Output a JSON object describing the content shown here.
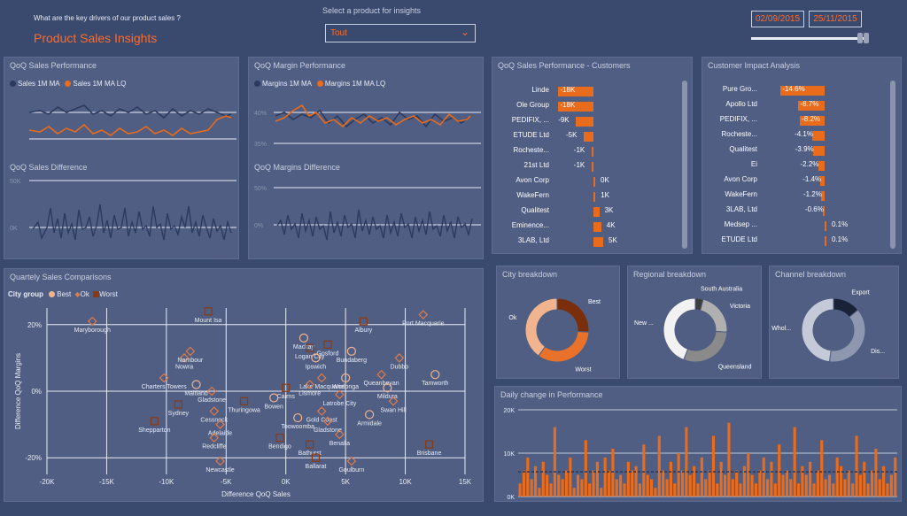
{
  "header": {
    "question": "What are the key drivers of our product sales ?",
    "title": "Product Sales Insights",
    "select_label": "Select a product for insights",
    "select_value": "Tout",
    "date_start": "02/09/2015",
    "date_end": "25/11/2015"
  },
  "panels": {
    "sales_perf": {
      "title": "QoQ Sales Performance",
      "legend_a": "Sales 1M MA",
      "legend_b": "Sales 1M MA LQ"
    },
    "sales_diff": {
      "title": "QoQ Sales Difference",
      "tick_top": "50K",
      "tick_mid": "0K"
    },
    "margin_perf": {
      "title": "QoQ Margin Performance",
      "legend_a": "Margins 1M MA",
      "legend_b": "Margins 1M MA LQ",
      "tick_top": "40%",
      "tick_bot": "35%"
    },
    "margin_diff": {
      "title": "QoQ Margins Difference",
      "tick_top": "50%",
      "tick_mid": "0%"
    },
    "customers": {
      "title": "QoQ Sales Performance - Customers"
    },
    "impact": {
      "title": "Customer Impact Analysis"
    },
    "scatter": {
      "title": "Quartely Sales Comparisons",
      "legend_title": "City group",
      "legend_best": "Best",
      "legend_ok": "Ok",
      "legend_worst": "Worst",
      "xlabel": "Difference QoQ Sales",
      "ylabel": "Difference QoQ Margins"
    },
    "city": {
      "title": "City breakdown"
    },
    "regional": {
      "title": "Regional breakdown"
    },
    "channel": {
      "title": "Channel breakdown"
    },
    "daily": {
      "title": "Daily change in Performance"
    }
  },
  "customers": [
    {
      "name": "Linde",
      "label": "-18K",
      "value": -18
    },
    {
      "name": "Ole Group",
      "label": "-18K",
      "value": -18
    },
    {
      "name": "PEDIFIX, ...",
      "label": "-9K",
      "value": -9
    },
    {
      "name": "ETUDE Ltd",
      "label": "-5K",
      "value": -5
    },
    {
      "name": "Rocheste...",
      "label": "-1K",
      "value": -1
    },
    {
      "name": "21st Ltd",
      "label": "-1K",
      "value": -1
    },
    {
      "name": "Avon Corp",
      "label": "0K",
      "value": 0
    },
    {
      "name": "WakeFern",
      "label": "1K",
      "value": 1
    },
    {
      "name": "Qualitest",
      "label": "3K",
      "value": 3
    },
    {
      "name": "Eminence...",
      "label": "4K",
      "value": 4
    },
    {
      "name": "3LAB, Ltd",
      "label": "5K",
      "value": 5
    }
  ],
  "impact": [
    {
      "name": "Pure Gro...",
      "label": "-14.6%",
      "value": -14.6
    },
    {
      "name": "Apollo Ltd",
      "label": "-8.7%",
      "value": -8.7
    },
    {
      "name": "PEDIFIX, ...",
      "label": "-8.2%",
      "value": -8.2
    },
    {
      "name": "Rocheste...",
      "label": "-4.1%",
      "value": -4.1
    },
    {
      "name": "Qualitest",
      "label": "-3.9%",
      "value": -3.9
    },
    {
      "name": "Ei",
      "label": "-2.2%",
      "value": -2.2
    },
    {
      "name": "Avon Corp",
      "label": "-1.4%",
      "value": -1.4
    },
    {
      "name": "WakeFern",
      "label": "-1.2%",
      "value": -1.2
    },
    {
      "name": "3LAB, Ltd",
      "label": "-0.6%",
      "value": -0.6
    },
    {
      "name": "Medsep ...",
      "label": "0.1%",
      "value": 0.1
    },
    {
      "name": "ETUDE Ltd",
      "label": "0.1%",
      "value": 0.1
    }
  ],
  "colors": {
    "accent": "#e96b1c",
    "series_dark": "#2c3a5e",
    "best": "#f2b48f",
    "ok": "#e07a4a",
    "worst": "#8a3a12"
  },
  "chart_data": [
    {
      "type": "scatter",
      "title": "Quartely Sales Comparisons",
      "xlabel": "Difference QoQ Sales",
      "ylabel": "Difference QoQ Margins",
      "xlim": [
        -20000,
        15000
      ],
      "ylim": [
        -25,
        25
      ],
      "x_ticks": [
        "-20K",
        "-15K",
        "-10K",
        "-5K",
        "0K",
        "5K",
        "10K",
        "15K"
      ],
      "y_ticks": [
        "20%",
        "0%",
        "-20%"
      ],
      "points": [
        {
          "name": "Port Macquarie",
          "x": 11500,
          "y": 23,
          "group": "Ok"
        },
        {
          "name": "Maryborough",
          "x": -16200,
          "y": 21,
          "group": "Ok"
        },
        {
          "name": "Mount Isa",
          "x": -6500,
          "y": 24,
          "group": "Worst"
        },
        {
          "name": "Nowra",
          "x": -8500,
          "y": 10,
          "group": "Ok"
        },
        {
          "name": "Nambour",
          "x": -8000,
          "y": 12,
          "group": "Ok"
        },
        {
          "name": "Mackay",
          "x": 1500,
          "y": 16,
          "group": "Best"
        },
        {
          "name": "Gosford",
          "x": 3500,
          "y": 14,
          "group": "Worst"
        },
        {
          "name": "Albury",
          "x": 6500,
          "y": 21,
          "group": "Worst"
        },
        {
          "name": "Logan City",
          "x": 2000,
          "y": 13,
          "group": "Worst"
        },
        {
          "name": "Ipswich",
          "x": 2500,
          "y": 10,
          "group": "Best"
        },
        {
          "name": "Bundaberg",
          "x": 5500,
          "y": 12,
          "group": "Best"
        },
        {
          "name": "Dubbo",
          "x": 9500,
          "y": 10,
          "group": "Ok"
        },
        {
          "name": "Queanbeyan",
          "x": 8000,
          "y": 5,
          "group": "Ok"
        },
        {
          "name": "Tamworth",
          "x": 12500,
          "y": 5,
          "group": "Best"
        },
        {
          "name": "Lake Macquarie",
          "x": 3000,
          "y": 4,
          "group": "Ok"
        },
        {
          "name": "Wodonga",
          "x": 5000,
          "y": 4,
          "group": "Best"
        },
        {
          "name": "Lismore",
          "x": 2000,
          "y": 2,
          "group": "Ok"
        },
        {
          "name": "Cairns",
          "x": 0,
          "y": 1,
          "group": "Worst"
        },
        {
          "name": "Latrobe City",
          "x": 4500,
          "y": -1,
          "group": "Ok"
        },
        {
          "name": "Mildura",
          "x": 8500,
          "y": 1,
          "group": "Best"
        },
        {
          "name": "Swan Hill",
          "x": 9000,
          "y": -3,
          "group": "Ok"
        },
        {
          "name": "Charters Towers",
          "x": -10200,
          "y": 4,
          "group": "Ok"
        },
        {
          "name": "Maitland",
          "x": -7500,
          "y": 2,
          "group": "Best"
        },
        {
          "name": "Gladstone",
          "x": -6200,
          "y": 0,
          "group": "Ok"
        },
        {
          "name": "Sydney",
          "x": -9000,
          "y": -4,
          "group": "Worst"
        },
        {
          "name": "Cessnock",
          "x": -6000,
          "y": -6,
          "group": "Ok"
        },
        {
          "name": "Thuringowa",
          "x": -3500,
          "y": -3,
          "group": "Worst"
        },
        {
          "name": "Bowen",
          "x": -1000,
          "y": -2,
          "group": "Best"
        },
        {
          "name": "Gold Coast",
          "x": 3000,
          "y": -6,
          "group": "Ok"
        },
        {
          "name": "Armidale",
          "x": 7000,
          "y": -7,
          "group": "Best"
        },
        {
          "name": "Gladstone",
          "x": 3500,
          "y": -9,
          "group": "Ok"
        },
        {
          "name": "Adelaide",
          "x": -5500,
          "y": -10,
          "group": "Ok"
        },
        {
          "name": "Toowoomba",
          "x": 1000,
          "y": -8,
          "group": "Best"
        },
        {
          "name": "Shepparton",
          "x": -11000,
          "y": -9,
          "group": "Worst"
        },
        {
          "name": "Redcliffe",
          "x": -6000,
          "y": -14,
          "group": "Ok"
        },
        {
          "name": "Benalla",
          "x": 4500,
          "y": -13,
          "group": "Ok"
        },
        {
          "name": "Bendigo",
          "x": -500,
          "y": -14,
          "group": "Worst"
        },
        {
          "name": "Bathurst",
          "x": 2000,
          "y": -16,
          "group": "Worst"
        },
        {
          "name": "Ballarat",
          "x": 2500,
          "y": -20,
          "group": "Worst"
        },
        {
          "name": "Newcastle",
          "x": -5500,
          "y": -21,
          "group": "Ok"
        },
        {
          "name": "Goulburn",
          "x": 5500,
          "y": -21,
          "group": "Ok"
        },
        {
          "name": "Brisbane",
          "x": 12000,
          "y": -16,
          "group": "Worst"
        }
      ]
    },
    {
      "type": "pie",
      "title": "City breakdown",
      "series": [
        {
          "name": "Best",
          "value": 26,
          "color": "#7a2e0a"
        },
        {
          "name": "Worst",
          "value": 34,
          "color": "#e8722a"
        },
        {
          "name": "Ok",
          "value": 40,
          "color": "#f2b48f"
        }
      ]
    },
    {
      "type": "pie",
      "title": "Regional breakdown",
      "series": [
        {
          "name": "South Australia",
          "value": 4,
          "color": "#3e3e3e"
        },
        {
          "name": "Victoria",
          "value": 22,
          "color": "#b0b0b0"
        },
        {
          "name": "Queensland",
          "value": 30,
          "color": "#8a8a8a"
        },
        {
          "name": "New ...",
          "value": 44,
          "color": "#f2f2f2"
        }
      ]
    },
    {
      "type": "pie",
      "title": "Channel breakdown",
      "series": [
        {
          "name": "Export",
          "value": 14,
          "color": "#1a2238"
        },
        {
          "name": "Dis...",
          "value": 38,
          "color": "#8e97b0"
        },
        {
          "name": "Whol...",
          "value": 48,
          "color": "#c5cad8"
        }
      ]
    },
    {
      "type": "bar",
      "title": "Daily change in Performance",
      "y_ticks": [
        "20K",
        "10K",
        "0K"
      ],
      "ylim": [
        0,
        20000
      ],
      "reference_line": 5700,
      "values": [
        3000,
        6000,
        9000,
        4000,
        7000,
        2000,
        8000,
        5000,
        3000,
        16000,
        5000,
        4000,
        6000,
        9000,
        2000,
        5000,
        4000,
        13000,
        3000,
        6000,
        8000,
        2000,
        9000,
        6000,
        11000,
        4000,
        5000,
        3000,
        8000,
        6000,
        7000,
        3000,
        12000,
        5000,
        4000,
        2000,
        14000,
        6000,
        4000,
        8000,
        3000,
        10000,
        6000,
        16000,
        5000,
        7000,
        3000,
        9000,
        4000,
        6000,
        14000,
        3000,
        8000,
        5000,
        17000,
        4000,
        6000,
        3000,
        7000,
        10000,
        5000,
        3000,
        6000,
        9000,
        4000,
        8000,
        3000,
        12000,
        5000,
        6000,
        4000,
        16000,
        3000,
        7000,
        5000,
        8000,
        3000,
        6000,
        13000,
        4000,
        5000,
        3000,
        9000,
        7000,
        4000,
        6000,
        3000,
        14000,
        5000,
        8000,
        3000,
        6000,
        11000,
        4000,
        7000,
        3000,
        5000,
        9000
      ]
    }
  ]
}
